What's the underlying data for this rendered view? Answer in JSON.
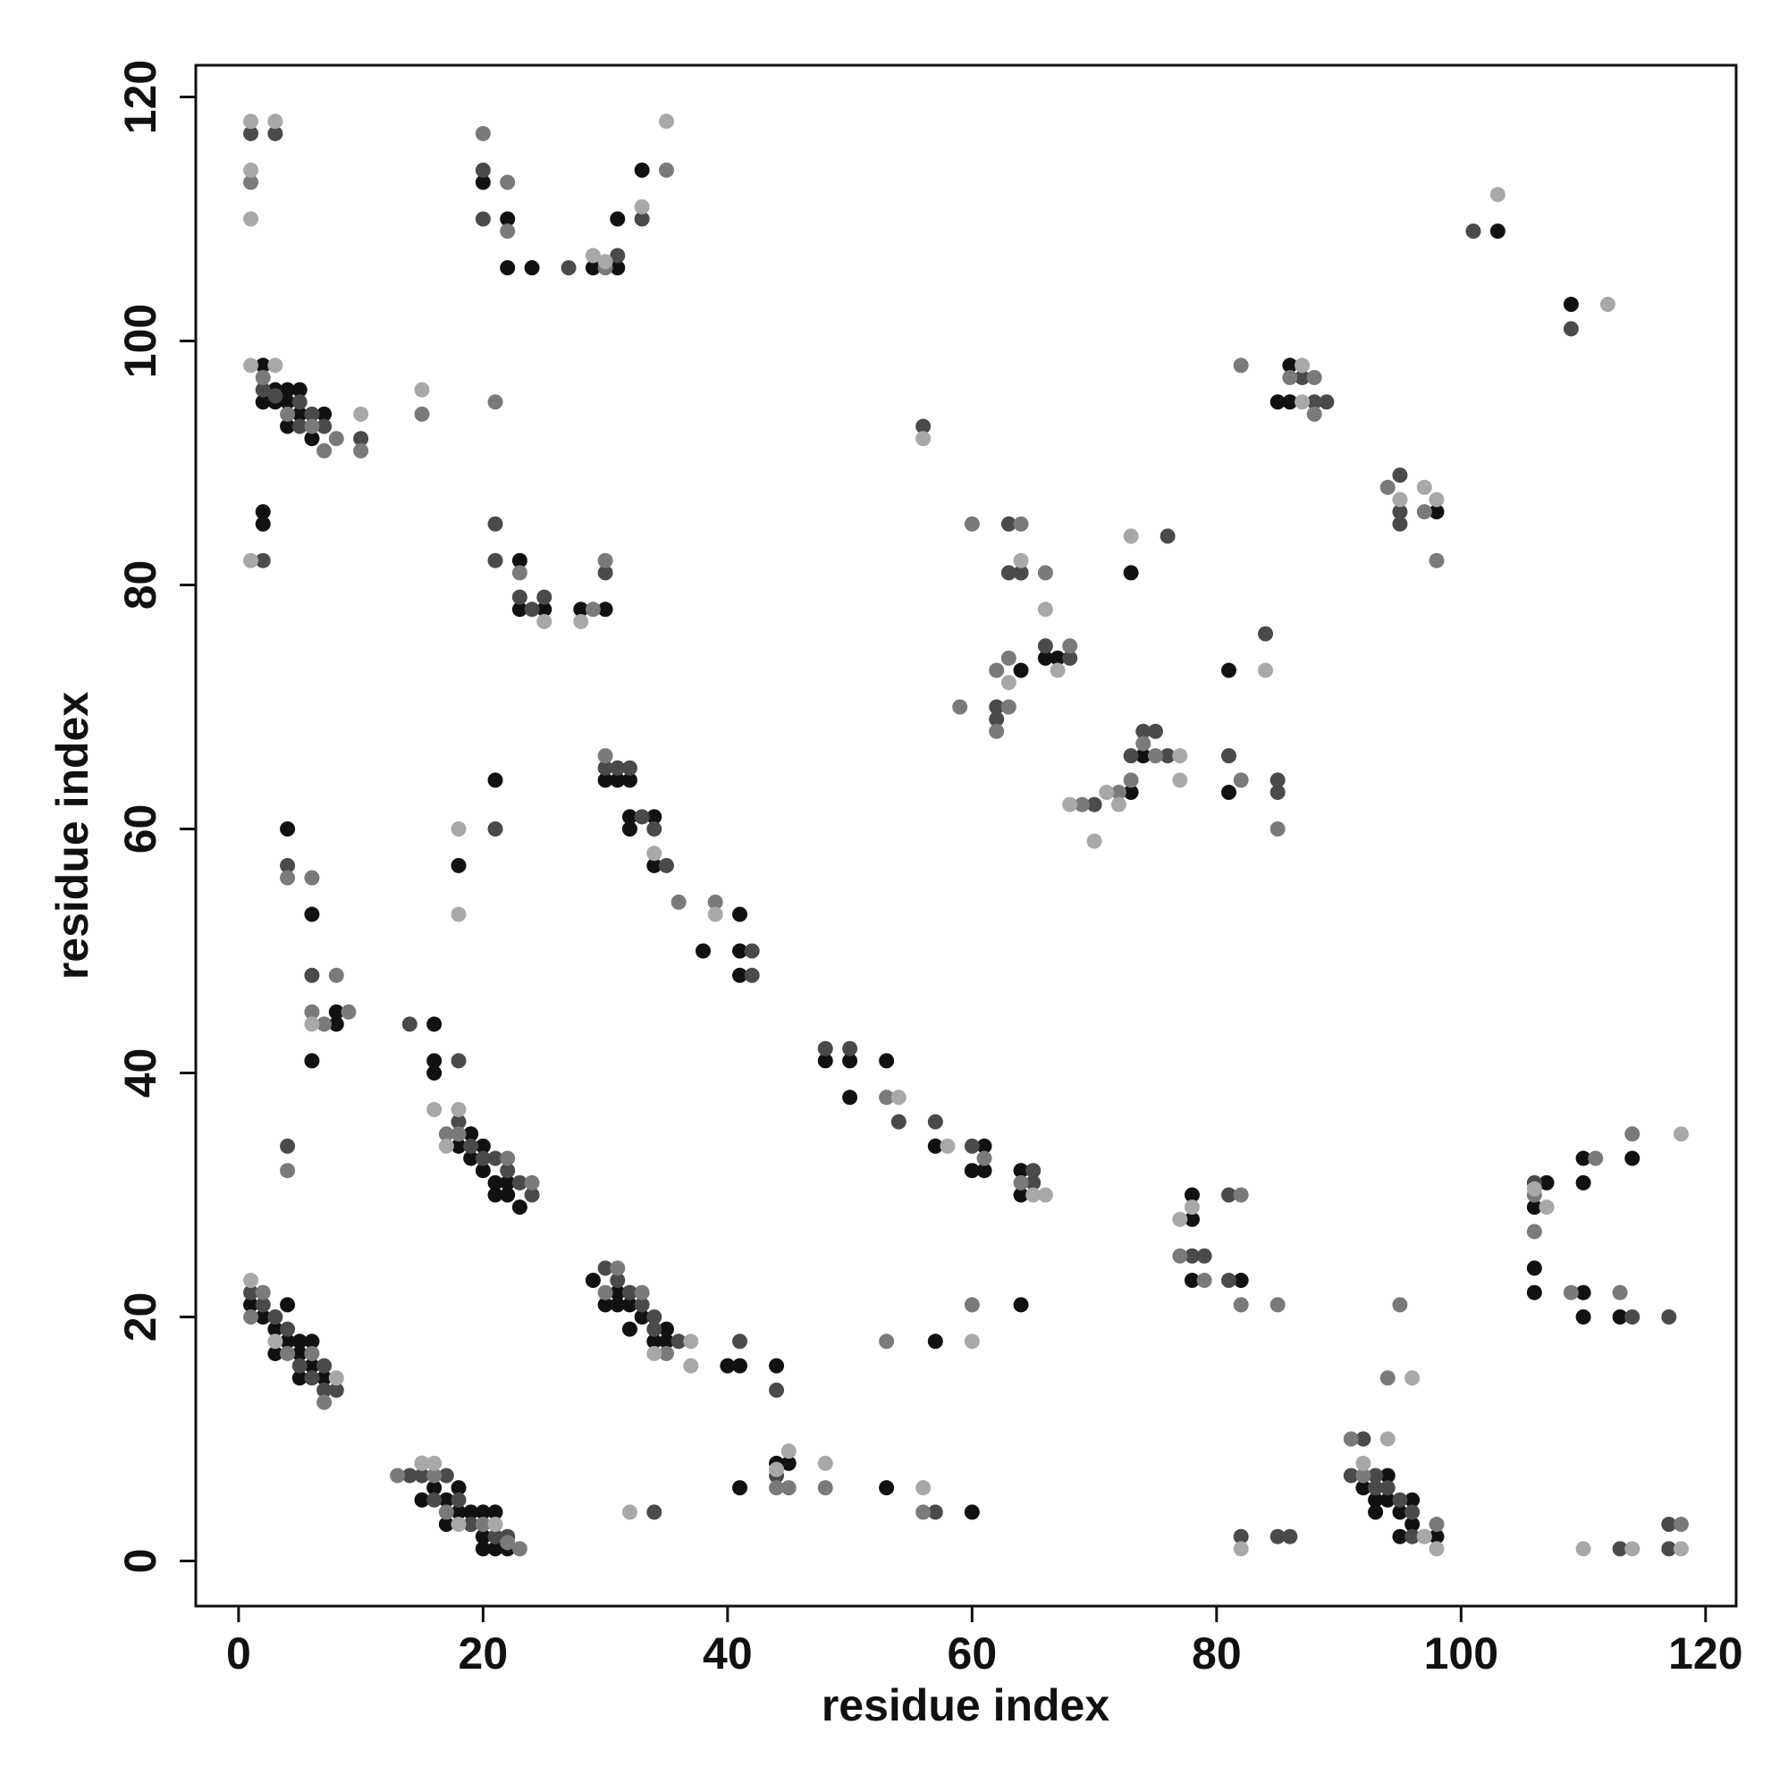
{
  "chart_data": {
    "type": "scatter",
    "x_label": "residue index",
    "y_label": "residue index",
    "xlim": [
      -3.5,
      122.5
    ],
    "ylim": [
      -3.7,
      122.6
    ],
    "xticks": [
      0,
      20,
      40,
      60,
      80,
      100,
      120
    ],
    "yticks": [
      0,
      20,
      40,
      60,
      80,
      100,
      120
    ],
    "grid": false,
    "series": [
      {
        "color": "#111111",
        "x": [
          1,
          2,
          3,
          4,
          3,
          4,
          5,
          5,
          6,
          6,
          7,
          5,
          16,
          17,
          18,
          17,
          18,
          19,
          20,
          21,
          22,
          19,
          20,
          21,
          15,
          20,
          18,
          19,
          19,
          20,
          21,
          21,
          22,
          22,
          20,
          23,
          16,
          16,
          16,
          29,
          30,
          31,
          32,
          32,
          33,
          34,
          35,
          35,
          31,
          30,
          31,
          32,
          32,
          32,
          34,
          38,
          41,
          41,
          41,
          34,
          48,
          50,
          53,
          57,
          61,
          64,
          64,
          60,
          61,
          50,
          2,
          3,
          4,
          4,
          5,
          5,
          6,
          7,
          2,
          3,
          4,
          22,
          22,
          24,
          29,
          31,
          31,
          33,
          20,
          23,
          23,
          25,
          28,
          30,
          2,
          2,
          4,
          6,
          6,
          8,
          8,
          21,
          18,
          64,
          64,
          73,
          67,
          66,
          73,
          74,
          81,
          81,
          86,
          85,
          86,
          98,
          103,
          109,
          78,
          78,
          78,
          82,
          92,
          93,
          93,
          94,
          94,
          95,
          96,
          96,
          95,
          98,
          41,
          44,
          45,
          53,
          60,
          41,
          44,
          40,
          57,
          64,
          106,
          106,
          110,
          110,
          113,
          110,
          110,
          114,
          107,
          106
        ],
        "values": [
          21,
          20,
          19,
          21,
          17,
          18,
          18,
          15,
          18,
          16,
          15,
          17,
          6,
          5,
          6,
          3,
          4,
          4,
          2,
          1,
          1,
          3,
          4,
          4,
          5,
          1,
          34,
          35,
          33,
          32,
          31,
          30,
          31,
          30,
          34,
          29,
          41,
          40,
          44,
          23,
          21,
          22,
          21,
          19,
          20,
          18,
          19,
          18,
          21,
          64,
          64,
          64,
          61,
          60,
          57,
          50,
          53,
          48,
          50,
          61,
          41,
          38,
          41,
          34,
          32,
          32,
          30,
          32,
          34,
          41,
          98,
          96,
          95,
          93,
          94,
          96,
          92,
          94,
          95,
          95,
          96,
          110,
          106,
          106,
          106,
          110,
          106,
          114,
          113,
          82,
          78,
          78,
          78,
          78,
          86,
          85,
          60,
          53,
          41,
          45,
          44,
          64,
          57,
          73,
          81,
          81,
          74,
          74,
          63,
          66,
          73,
          63,
          98,
          95,
          95,
          86,
          109,
          103,
          30,
          28,
          23,
          23,
          6,
          5,
          4,
          7,
          5,
          4,
          5,
          3,
          2,
          2,
          6,
          8,
          8,
          6,
          4,
          16,
          16,
          16,
          18,
          21,
          24,
          22,
          22,
          20,
          20,
          33,
          31,
          33,
          31,
          29
        ]
      },
      {
        "color": "#4a4a4a",
        "x": [
          1,
          2,
          3,
          4,
          5,
          6,
          7,
          8,
          7,
          14,
          15,
          16,
          17,
          18,
          19,
          21,
          22,
          15,
          18,
          19,
          20,
          21,
          22,
          23,
          24,
          14,
          18,
          30,
          31,
          32,
          33,
          34,
          34,
          36,
          30,
          31,
          33,
          34,
          35,
          42,
          42,
          32,
          48,
          50,
          54,
          57,
          60,
          65,
          65,
          2,
          3,
          5,
          6,
          7,
          10,
          6,
          5,
          20,
          20,
          31,
          33,
          27,
          3,
          1,
          21,
          23,
          25,
          24,
          21,
          30,
          2,
          4,
          4,
          6,
          21,
          63,
          64,
          63,
          66,
          68,
          62,
          74,
          75,
          73,
          70,
          76,
          62,
          76,
          81,
          84,
          85,
          85,
          88,
          89,
          87,
          95,
          95,
          95,
          56,
          101,
          109,
          78,
          79,
          81,
          81,
          92,
          93,
          91,
          94,
          96,
          93,
          96,
          95,
          34,
          44,
          57,
          41,
          44,
          82,
          85,
          86,
          106,
          114,
          117,
          117,
          117,
          113
        ],
        "values": [
          22,
          21,
          20,
          19,
          16,
          15,
          16,
          14,
          14,
          7,
          8,
          5,
          7,
          5,
          3,
          2,
          2,
          7,
          36,
          34,
          33,
          33,
          32,
          31,
          30,
          44,
          41,
          24,
          23,
          22,
          21,
          20,
          19,
          18,
          65,
          65,
          61,
          60,
          57,
          50,
          48,
          65,
          42,
          42,
          36,
          36,
          34,
          31,
          32,
          96,
          95.5,
          95,
          93,
          93,
          92,
          94,
          93,
          114,
          110,
          107,
          110,
          106,
          117,
          117,
          85,
          79,
          79,
          78,
          82,
          81,
          82,
          57,
          34,
          48,
          60,
          85,
          81,
          81,
          75,
          74,
          69,
          68,
          68,
          66,
          62,
          66,
          70,
          84,
          66,
          76,
          63,
          64,
          95,
          95,
          97,
          89,
          86,
          85,
          93,
          109,
          101,
          25,
          25,
          30,
          23,
          10,
          6,
          7,
          6,
          4,
          7,
          2,
          5,
          4,
          7,
          4,
          18,
          14,
          2,
          2,
          2,
          31,
          20,
          3,
          1,
          20,
          1
        ]
      },
      {
        "color": "#7a7a7a",
        "x": [
          1,
          2,
          4,
          6,
          7,
          13,
          16,
          17,
          20,
          22,
          23,
          17,
          18,
          22,
          24,
          30,
          31,
          33,
          35,
          36,
          39,
          30,
          53,
          61,
          64,
          2,
          4,
          6,
          8,
          7,
          10,
          15,
          20,
          22,
          30,
          1,
          35,
          22,
          23,
          30,
          29,
          4,
          6,
          6,
          7,
          8,
          9,
          4,
          60,
          64,
          66,
          63,
          62,
          68,
          59,
          63,
          69,
          72,
          74,
          75,
          73,
          62,
          82,
          85,
          82,
          86,
          88,
          88,
          94,
          97,
          98,
          21,
          77,
          82,
          82,
          85,
          79,
          91,
          92,
          94,
          97,
          98,
          95,
          44,
          45,
          48,
          56,
          60,
          53,
          106,
          106,
          113,
          109,
          111,
          114,
          118
        ],
        "values": [
          20,
          22,
          17,
          17,
          13,
          7,
          7,
          4,
          3,
          1.5,
          1,
          35,
          35,
          33,
          31,
          22,
          24,
          22,
          17,
          54,
          54,
          66,
          38,
          33,
          31,
          97,
          94,
          93,
          92,
          91,
          91,
          94,
          117,
          109,
          106,
          113,
          114,
          113,
          81,
          82,
          78,
          56,
          56,
          45,
          44,
          48,
          45,
          32,
          85,
          85,
          81,
          74,
          73,
          75,
          70,
          70,
          62,
          63,
          67,
          66,
          64,
          68,
          64,
          60,
          98,
          97,
          97,
          94,
          88,
          86,
          82,
          95,
          25,
          30,
          21,
          21,
          23,
          10,
          7,
          15,
          2,
          3,
          21,
          6,
          6,
          6,
          4,
          21,
          18,
          27,
          30,
          22,
          22,
          33,
          35,
          3
        ]
      },
      {
        "color": "#a8a8a8",
        "x": [
          1,
          3,
          8,
          15,
          16,
          18,
          21,
          16,
          17,
          18,
          34,
          37,
          37,
          34,
          39,
          54,
          58,
          66,
          65,
          1,
          3,
          10,
          15,
          29,
          30,
          33,
          35,
          1,
          3,
          1,
          1,
          25,
          28,
          1,
          6,
          18,
          18,
          64,
          66,
          63,
          67,
          71,
          73,
          72,
          68,
          70,
          77,
          77,
          84,
          87,
          87,
          95,
          97,
          98,
          56,
          103,
          112,
          77,
          78,
          92,
          94,
          96,
          98,
          97,
          32,
          45,
          48,
          56,
          44,
          60,
          82,
          106,
          107,
          110,
          114,
          118,
          118
        ],
        "values": [
          23,
          18,
          15,
          8,
          8,
          3,
          3,
          37,
          34,
          37,
          17,
          18,
          16,
          58,
          53,
          38,
          34,
          30,
          30,
          98,
          98,
          94,
          96,
          107,
          106.5,
          111,
          118,
          118,
          118,
          114,
          110,
          77,
          77,
          82,
          44,
          60,
          53,
          82,
          78,
          72,
          73,
          63,
          84,
          62,
          62,
          59,
          66,
          64,
          73,
          98,
          95,
          87,
          88,
          87,
          92,
          112,
          103,
          28,
          29,
          8,
          10,
          15,
          1,
          2,
          4,
          9,
          8,
          6,
          7.5,
          18,
          1,
          30.5,
          29,
          1,
          1,
          35,
          1
        ]
      }
    ]
  }
}
